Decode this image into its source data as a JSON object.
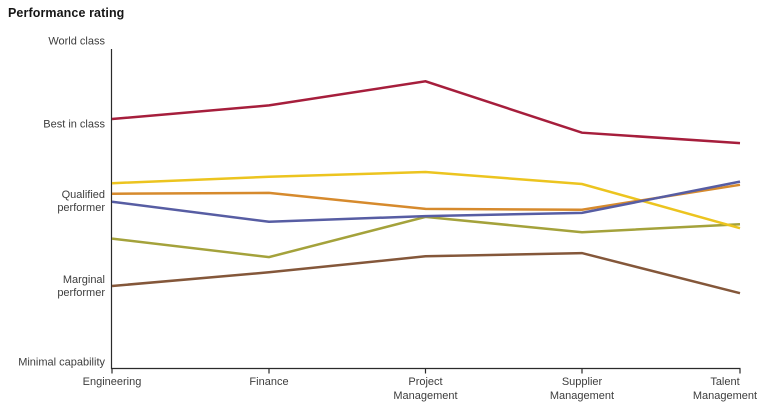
{
  "title": "Performance rating",
  "chart_data": {
    "type": "line",
    "title": "Performance rating",
    "categories": [
      "Engineering",
      "Finance",
      "Project Management",
      "Supplier Management",
      "Talent Management"
    ],
    "y_axis_labels": [
      "World class",
      "Best in class",
      "Qualified performer",
      "Marginal performer",
      "Minimal capability"
    ],
    "y_axis": {
      "min": 1,
      "max": 5,
      "min_label": "Minimal capability",
      "max_label": "World class"
    },
    "grid": false,
    "legend_position": "none",
    "series": [
      {
        "name": "crimson-line",
        "color": "#a61e3c",
        "values": [
          4.04,
          4.21,
          4.51,
          3.87,
          3.74
        ]
      },
      {
        "name": "brown-line",
        "color": "#84573a",
        "values": [
          1.96,
          2.13,
          2.33,
          2.37,
          1.87
        ]
      },
      {
        "name": "olive-line",
        "color": "#a4a23b",
        "values": [
          2.55,
          2.32,
          2.82,
          2.63,
          2.73
        ]
      },
      {
        "name": "yellow-line",
        "color": "#ecc41f",
        "values": [
          3.24,
          3.32,
          3.38,
          3.23,
          2.68
        ]
      },
      {
        "name": "orange-line",
        "color": "#d68a2d",
        "values": [
          3.11,
          3.12,
          2.92,
          2.91,
          3.22
        ]
      },
      {
        "name": "slate-blue-line",
        "color": "#575da3",
        "values": [
          3.01,
          2.76,
          2.83,
          2.87,
          3.26
        ]
      }
    ],
    "axis_color": "#2b2b2b",
    "label_color": "#3d3d3d"
  }
}
